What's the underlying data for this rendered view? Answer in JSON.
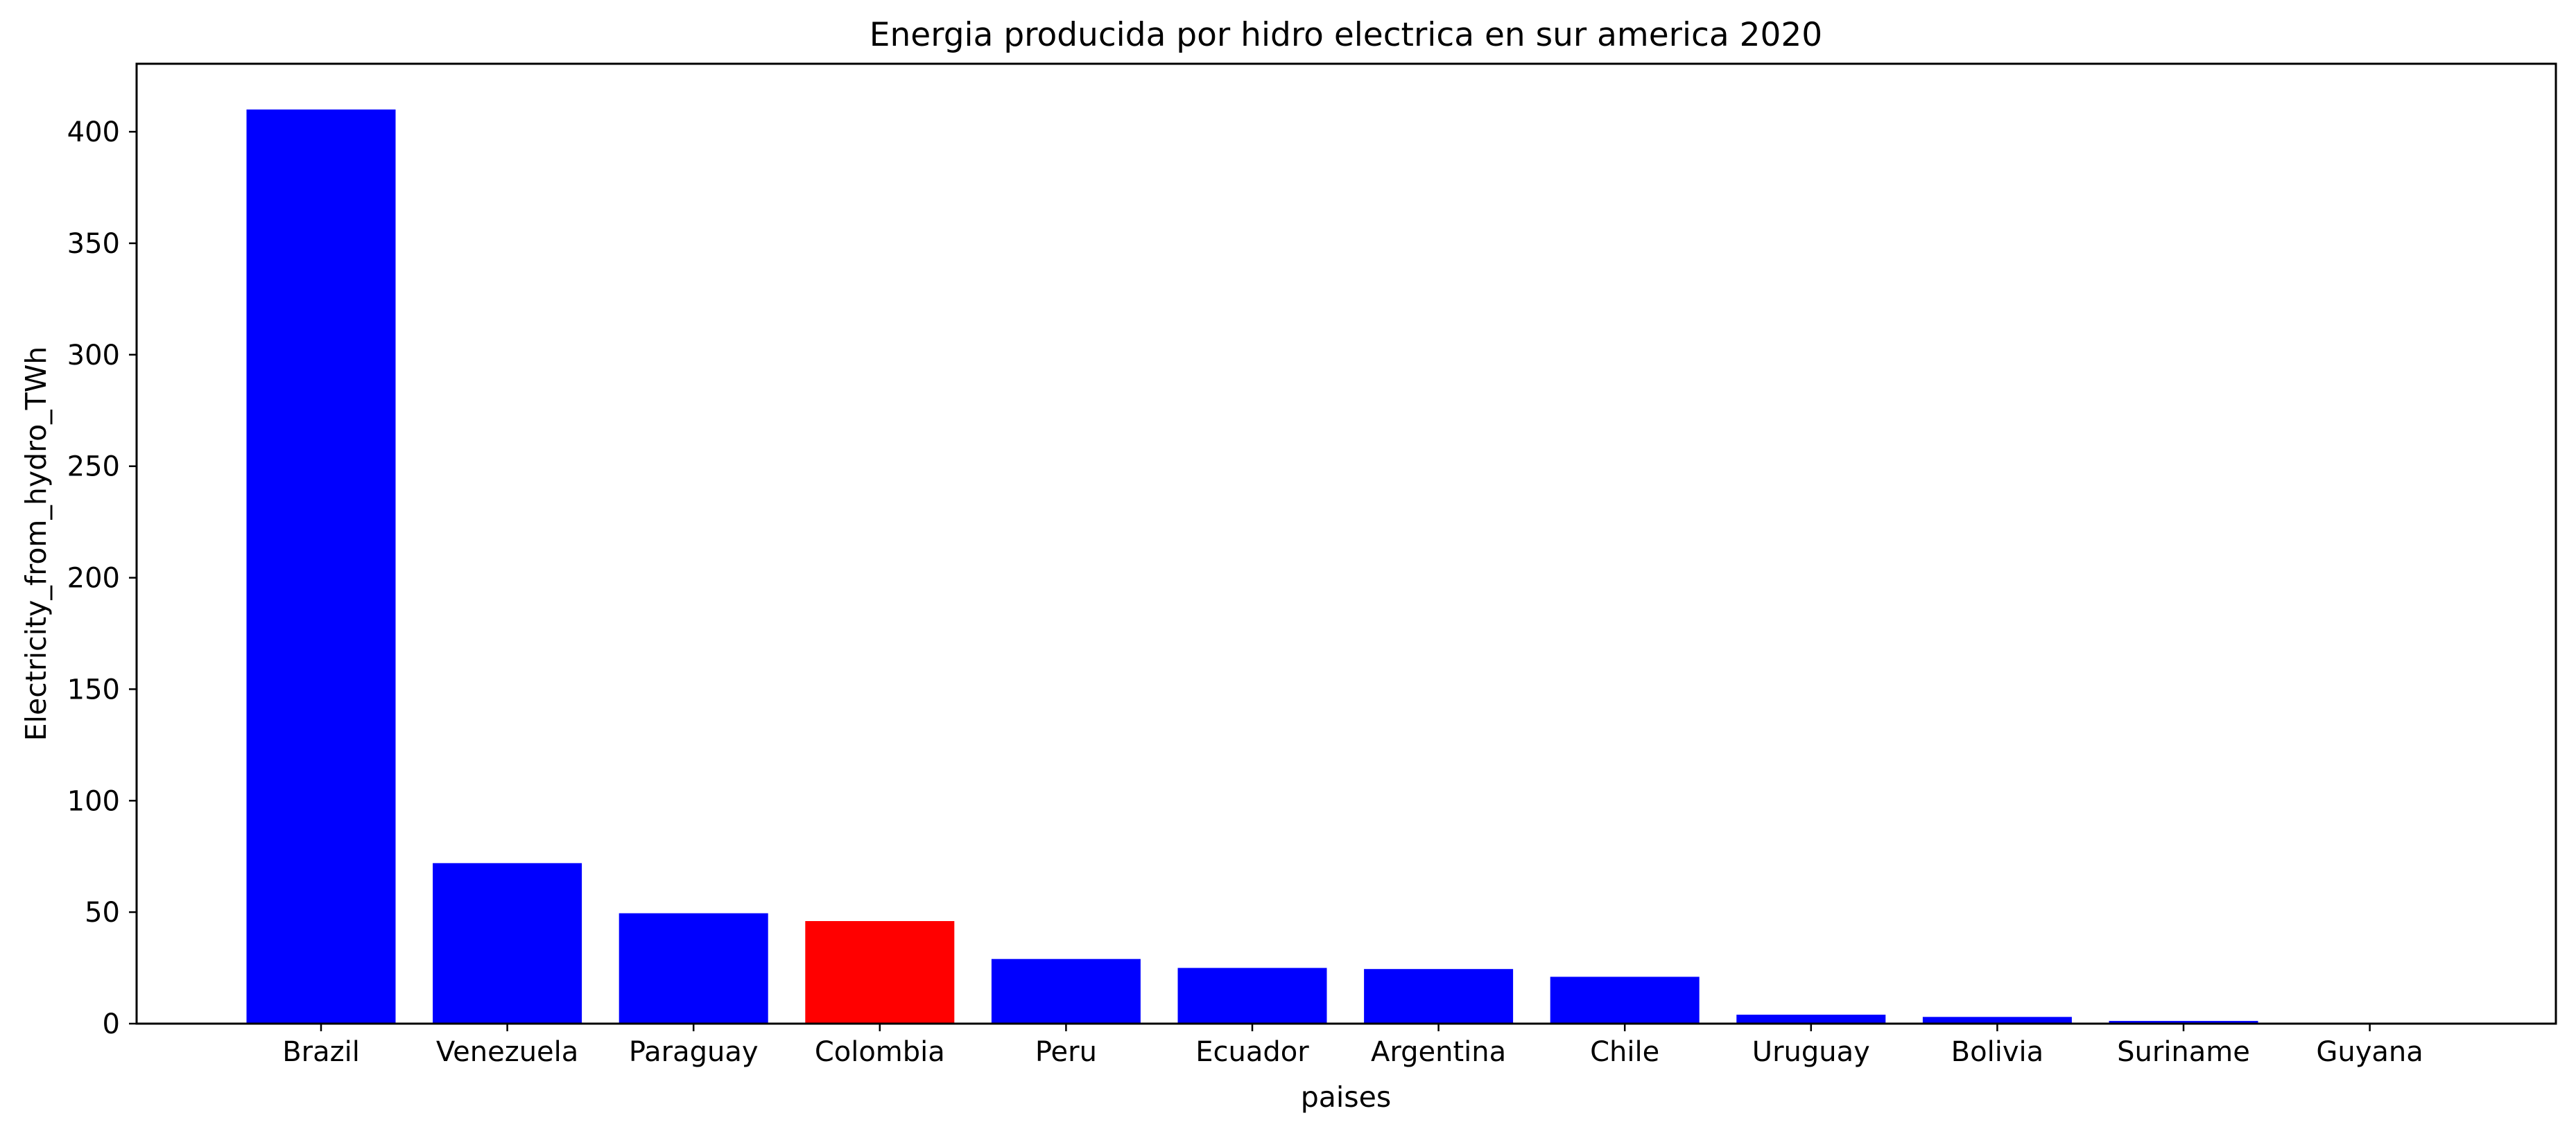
{
  "chart_data": {
    "type": "bar",
    "title": "Energia producida por hidro electrica en sur america 2020",
    "xlabel": "paises",
    "ylabel": "Electricity_from_hydro_TWh",
    "categories": [
      "Brazil",
      "Venezuela",
      "Paraguay",
      "Colombia",
      "Peru",
      "Ecuador",
      "Argentina",
      "Chile",
      "Uruguay",
      "Bolivia",
      "Suriname",
      "Guyana"
    ],
    "values": [
      410,
      72,
      49.5,
      46,
      29,
      25,
      24.5,
      21,
      4,
      3,
      1.2,
      0
    ],
    "colors": [
      "#0000ff",
      "#0000ff",
      "#0000ff",
      "#ff0000",
      "#0000ff",
      "#0000ff",
      "#0000ff",
      "#0000ff",
      "#0000ff",
      "#0000ff",
      "#0000ff",
      "#0000ff"
    ],
    "yticks": [
      0,
      50,
      100,
      150,
      200,
      250,
      300,
      350,
      400
    ],
    "ylim": [
      0,
      430.5
    ],
    "grid": false,
    "legend": "none"
  }
}
